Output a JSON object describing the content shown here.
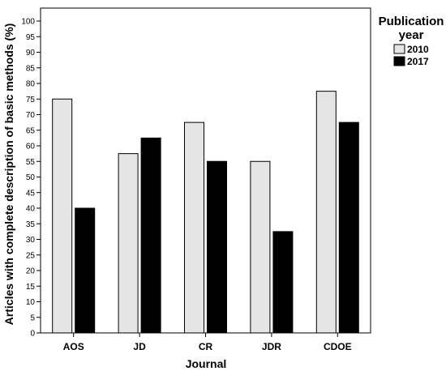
{
  "chart_data": {
    "type": "bar",
    "categories": [
      "AOS",
      "JD",
      "CR",
      "JDR",
      "CDOE"
    ],
    "series": [
      {
        "name": "2010",
        "values": [
          75,
          57.5,
          67.5,
          55,
          77.5
        ],
        "color": "#e5e5e5"
      },
      {
        "name": "2017",
        "values": [
          40,
          62.5,
          55,
          32.5,
          67.5
        ],
        "color": "#000000"
      }
    ],
    "xlabel": "Journal",
    "ylabel": "Articles with complete description of basic methods (%)",
    "ylim": [
      0,
      100
    ],
    "yticks": [
      0,
      5,
      10,
      15,
      20,
      25,
      30,
      35,
      40,
      45,
      50,
      55,
      60,
      65,
      70,
      75,
      80,
      85,
      90,
      95,
      100
    ],
    "legend": {
      "title_line1": "Publication",
      "title_line2": "year",
      "position": "right"
    },
    "grid": false
  }
}
